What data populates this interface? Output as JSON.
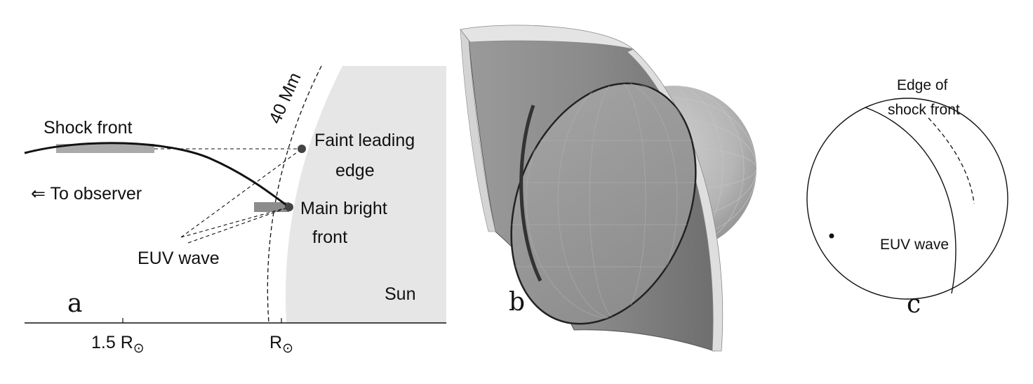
{
  "panel_a": {
    "panel_letter": "a",
    "shock_front_label": "Shock front",
    "observer_label": "⇐ To observer",
    "euv_wave_label": "EUV wave",
    "faint_leading_line1": "Faint leading",
    "faint_leading_line2": "edge",
    "main_bright_line1": "Main bright",
    "main_bright_line2": "front",
    "height_label": "40 Mm",
    "sun_label": "Sun",
    "tick_1_5_prefix": "1.5 R",
    "tick_rsun_prefix": "R",
    "sun_symbol": "⊙"
  },
  "panel_b": {
    "panel_letter": "b"
  },
  "panel_c": {
    "panel_letter": "c",
    "edge_line1": "Edge of",
    "edge_line2": "shock front",
    "euv_wave_label": "EUV wave"
  },
  "colors": {
    "sun_fill": "#e6e6e6",
    "highlight_bar": "#aaaaaa",
    "dark_bar": "#8c8c8c",
    "marker": "#444444"
  }
}
